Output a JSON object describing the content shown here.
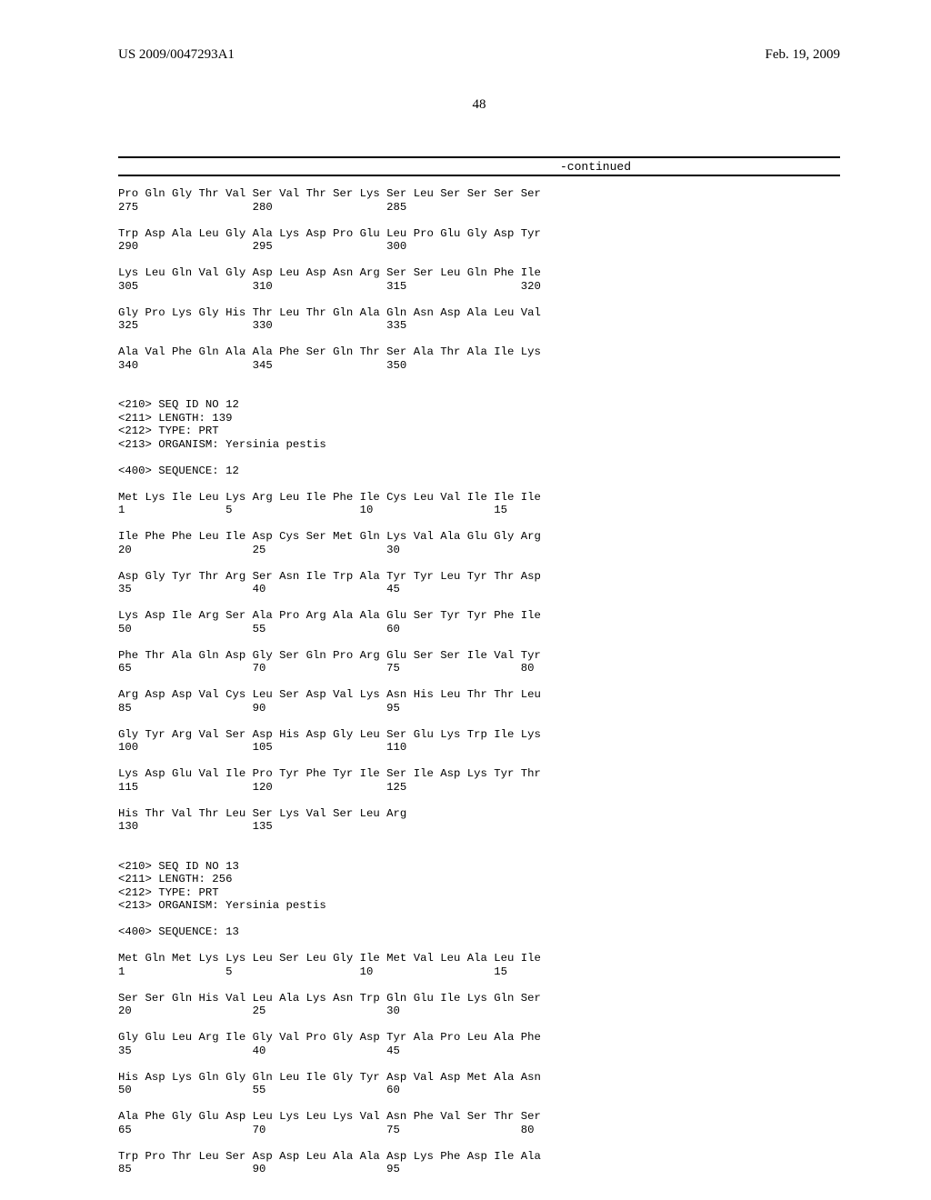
{
  "header": {
    "left": "US 2009/0047293A1",
    "right": "Feb. 19, 2009"
  },
  "pagenum": "48",
  "continued": "-continued",
  "pre": "Pro Gln Gly Thr Val Ser Val Thr Ser Lys Ser Leu Ser Ser Ser Ser\n275                 280                 285\n\nTrp Asp Ala Leu Gly Ala Lys Asp Pro Glu Leu Pro Glu Gly Asp Tyr\n290                 295                 300\n\nLys Leu Gln Val Gly Asp Leu Asp Asn Arg Ser Ser Leu Gln Phe Ile\n305                 310                 315                 320\n\nGly Pro Lys Gly His Thr Leu Thr Gln Ala Gln Asn Asp Ala Leu Val\n325                 330                 335\n\nAla Val Phe Gln Ala Ala Phe Ser Gln Thr Ser Ala Thr Ala Ile Lys\n340                 345                 350\n\n\n<210> SEQ ID NO 12\n<211> LENGTH: 139\n<212> TYPE: PRT\n<213> ORGANISM: Yersinia pestis\n\n<400> SEQUENCE: 12\n\nMet Lys Ile Leu Lys Arg Leu Ile Phe Ile Cys Leu Val Ile Ile Ile\n1               5                   10                  15\n\nIle Phe Phe Leu Ile Asp Cys Ser Met Gln Lys Val Ala Glu Gly Arg\n20                  25                  30\n\nAsp Gly Tyr Thr Arg Ser Asn Ile Trp Ala Tyr Tyr Leu Tyr Thr Asp\n35                  40                  45\n\nLys Asp Ile Arg Ser Ala Pro Arg Ala Ala Glu Ser Tyr Tyr Phe Ile\n50                  55                  60\n\nPhe Thr Ala Gln Asp Gly Ser Gln Pro Arg Glu Ser Ser Ile Val Tyr\n65                  70                  75                  80\n\nArg Asp Asp Val Cys Leu Ser Asp Val Lys Asn His Leu Thr Thr Leu\n85                  90                  95\n\nGly Tyr Arg Val Ser Asp His Asp Gly Leu Ser Glu Lys Trp Ile Lys\n100                 105                 110\n\nLys Asp Glu Val Ile Pro Tyr Phe Tyr Ile Ser Ile Asp Lys Tyr Thr\n115                 120                 125\n\nHis Thr Val Thr Leu Ser Lys Val Ser Leu Arg\n130                 135\n\n\n<210> SEQ ID NO 13\n<211> LENGTH: 256\n<212> TYPE: PRT\n<213> ORGANISM: Yersinia pestis\n\n<400> SEQUENCE: 13\n\nMet Gln Met Lys Lys Leu Ser Leu Gly Ile Met Val Leu Ala Leu Ile\n1               5                   10                  15\n\nSer Ser Gln His Val Leu Ala Lys Asn Trp Gln Glu Ile Lys Gln Ser\n20                  25                  30\n\nGly Glu Leu Arg Ile Gly Val Pro Gly Asp Tyr Ala Pro Leu Ala Phe\n35                  40                  45\n\nHis Asp Lys Gln Gly Gln Leu Ile Gly Tyr Asp Val Asp Met Ala Asn\n50                  55                  60\n\nAla Phe Gly Glu Asp Leu Lys Leu Lys Val Asn Phe Val Ser Thr Ser\n65                  70                  75                  80\n\nTrp Pro Thr Leu Ser Asp Asp Leu Ala Ala Asp Lys Phe Asp Ile Ala\n85                  90                  95"
}
